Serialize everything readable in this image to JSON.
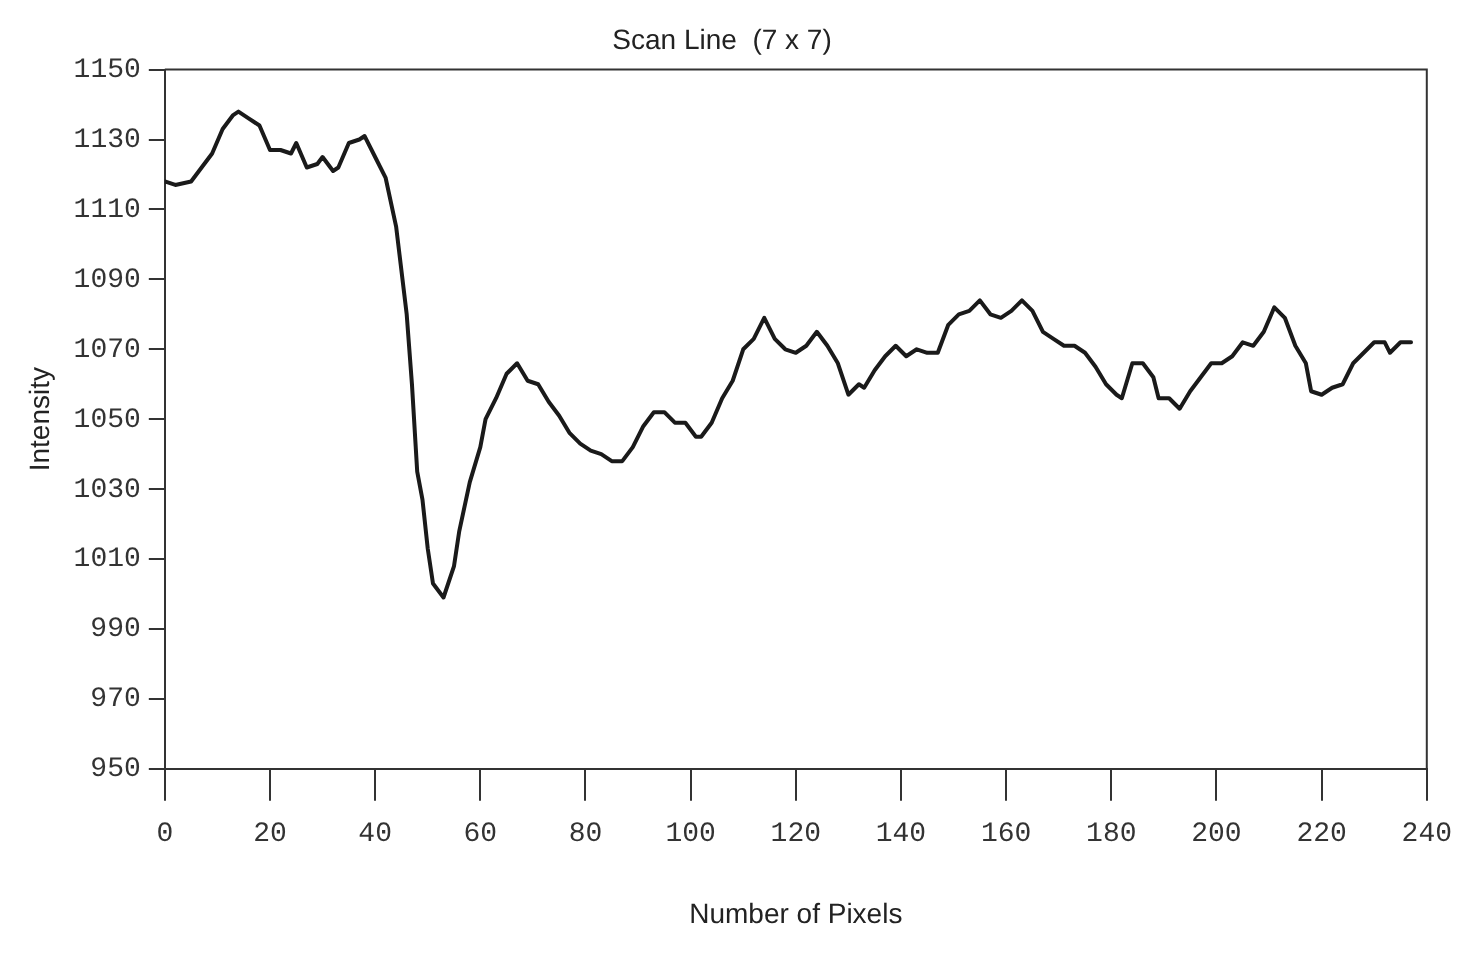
{
  "chart_data": {
    "type": "line",
    "title": "Scan Line  (7 x 7)",
    "xlabel": "Number of Pixels",
    "ylabel": "Intensity",
    "xlim": [
      0,
      240
    ],
    "xticks": [
      0,
      20,
      40,
      60,
      80,
      100,
      120,
      140,
      160,
      180,
      200,
      220,
      240
    ],
    "ylim": [
      950,
      1150
    ],
    "yticks": [
      950,
      970,
      990,
      1010,
      1030,
      1050,
      1070,
      1090,
      1110,
      1130,
      1150
    ],
    "grid": false,
    "legend": false,
    "marker": "none",
    "line_style": "solid",
    "series": [
      {
        "color": "#1a1a1a",
        "x": [
          0,
          2,
          5,
          7,
          9,
          11,
          13,
          14,
          16,
          18,
          20,
          22,
          24,
          25,
          27,
          29,
          30,
          32,
          33,
          35,
          37,
          38,
          40,
          42,
          44,
          46,
          47,
          48,
          49,
          50,
          51,
          53,
          55,
          56,
          58,
          60,
          61,
          63,
          65,
          67,
          69,
          71,
          73,
          75,
          77,
          79,
          81,
          83,
          85,
          87,
          89,
          91,
          93,
          95,
          97,
          99,
          101,
          102,
          104,
          106,
          108,
          110,
          112,
          114,
          116,
          118,
          120,
          122,
          124,
          126,
          128,
          130,
          132,
          133,
          135,
          137,
          139,
          141,
          143,
          145,
          147,
          149,
          151,
          153,
          155,
          157,
          159,
          161,
          163,
          165,
          167,
          169,
          171,
          173,
          175,
          177,
          179,
          181,
          182,
          184,
          186,
          188,
          189,
          191,
          193,
          195,
          197,
          199,
          201,
          203,
          205,
          207,
          209,
          211,
          213,
          215,
          217,
          218,
          220,
          222,
          224,
          226,
          228,
          230,
          232,
          233,
          235,
          237
        ],
        "values": [
          1118,
          1117,
          1118,
          1122,
          1126,
          1133,
          1137,
          1138,
          1136,
          1134,
          1127,
          1127,
          1126,
          1129,
          1122,
          1123,
          1125,
          1121,
          1122,
          1129,
          1130,
          1131,
          1125,
          1119,
          1105,
          1080,
          1060,
          1035,
          1027,
          1013,
          1003,
          999,
          1008,
          1018,
          1032,
          1042,
          1050,
          1056,
          1063,
          1066,
          1061,
          1060,
          1055,
          1051,
          1046,
          1043,
          1041,
          1040,
          1038,
          1038,
          1042,
          1048,
          1052,
          1052,
          1049,
          1049,
          1045,
          1045,
          1049,
          1056,
          1061,
          1070,
          1073,
          1079,
          1073,
          1070,
          1069,
          1071,
          1075,
          1071,
          1066,
          1057,
          1060,
          1059,
          1064,
          1068,
          1071,
          1068,
          1070,
          1069,
          1069,
          1077,
          1080,
          1081,
          1084,
          1080,
          1079,
          1081,
          1084,
          1081,
          1075,
          1073,
          1071,
          1071,
          1069,
          1065,
          1060,
          1057,
          1056,
          1066,
          1066,
          1062,
          1056,
          1056,
          1053,
          1058,
          1062,
          1066,
          1066,
          1068,
          1072,
          1071,
          1075,
          1082,
          1079,
          1071,
          1066,
          1058,
          1057,
          1059,
          1060,
          1066,
          1069,
          1072,
          1072,
          1069,
          1072,
          1072
        ]
      }
    ]
  }
}
